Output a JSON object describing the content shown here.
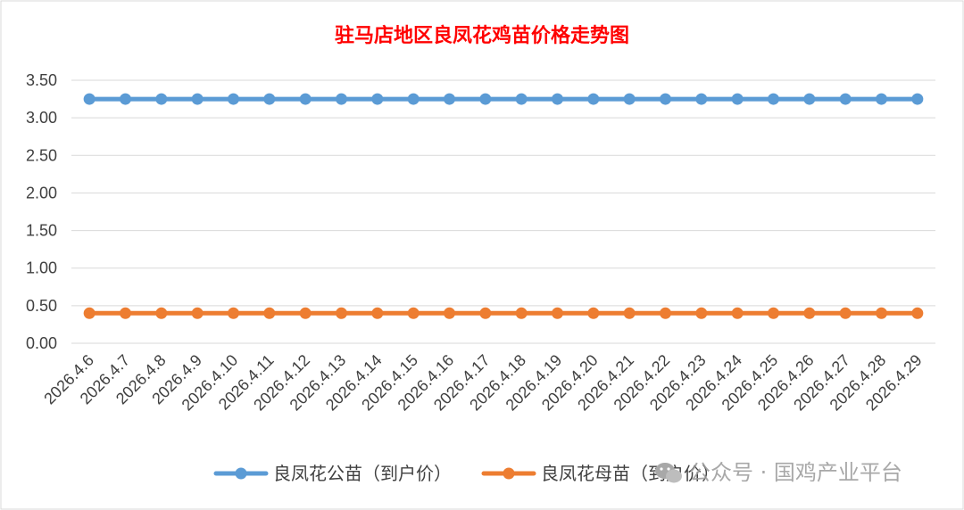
{
  "chart_data": {
    "type": "line",
    "title": "驻马店地区良凤花鸡苗价格走势图",
    "xlabel": "",
    "ylabel": "",
    "ylim": [
      0,
      3.5
    ],
    "yticks": [
      "0.00",
      "0.50",
      "1.00",
      "1.50",
      "2.00",
      "2.50",
      "3.00",
      "3.50"
    ],
    "grid": true,
    "legend_position": "bottom",
    "categories": [
      "2026.4.6",
      "2026.4.7",
      "2026.4.8",
      "2026.4.9",
      "2026.4.10",
      "2026.4.11",
      "2026.4.12",
      "2026.4.13",
      "2026.4.14",
      "2026.4.15",
      "2026.4.16",
      "2026.4.17",
      "2026.4.18",
      "2026.4.19",
      "2026.4.20",
      "2026.4.21",
      "2026.4.22",
      "2026.4.23",
      "2026.4.24",
      "2026.4.25",
      "2026.4.26",
      "2026.4.27",
      "2026.4.28",
      "2026.4.29"
    ],
    "series": [
      {
        "name": "良凤花公苗（到户价）",
        "color": "#5b9bd5",
        "values": [
          3.25,
          3.25,
          3.25,
          3.25,
          3.25,
          3.25,
          3.25,
          3.25,
          3.25,
          3.25,
          3.25,
          3.25,
          3.25,
          3.25,
          3.25,
          3.25,
          3.25,
          3.25,
          3.25,
          3.25,
          3.25,
          3.25,
          3.25,
          3.25
        ]
      },
      {
        "name": "良凤花母苗（到户价）",
        "color": "#ed7d31",
        "values": [
          0.4,
          0.4,
          0.4,
          0.4,
          0.4,
          0.4,
          0.4,
          0.4,
          0.4,
          0.4,
          0.4,
          0.4,
          0.4,
          0.4,
          0.4,
          0.4,
          0.4,
          0.4,
          0.4,
          0.4,
          0.4,
          0.4,
          0.4,
          0.4
        ]
      }
    ]
  },
  "watermark": {
    "text": "公众号 · 国鸡产业平台",
    "icon": "wechat-icon",
    "color": "#9a9a9a"
  }
}
